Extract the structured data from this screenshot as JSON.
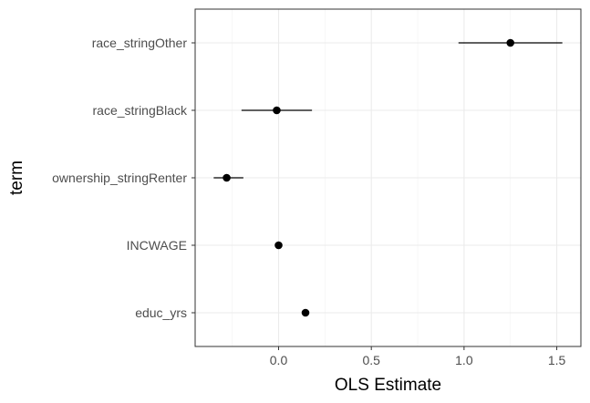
{
  "chart_data": {
    "type": "scatter",
    "subtype": "coefficient-plot",
    "xlabel": "OLS Estimate",
    "ylabel": "term",
    "xlim": [
      -0.45,
      1.63
    ],
    "x_ticks": [
      0.0,
      0.5,
      1.0,
      1.5
    ],
    "x_tick_labels": [
      "0.0",
      "0.5",
      "1.0",
      "1.5"
    ],
    "grid": true,
    "theme": "bw",
    "categories": [
      "race_stringOther",
      "race_stringBlack",
      "ownership_stringRenter",
      "INCWAGE",
      "educ_yrs"
    ],
    "series": [
      {
        "estimate": [
          1.25,
          -0.01,
          -0.28,
          0.0,
          0.145
        ],
        "conf_low": [
          0.97,
          -0.2,
          -0.35,
          0.0,
          0.145
        ],
        "conf_high": [
          1.53,
          0.18,
          -0.19,
          0.0,
          0.145
        ]
      }
    ]
  }
}
